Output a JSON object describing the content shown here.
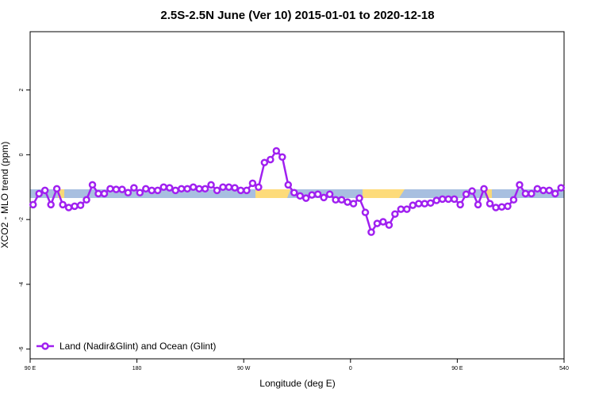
{
  "chart_data": {
    "type": "line",
    "title": "2.5S-2.5N June (Ver 10)   2015-01-01 to 2020-12-18",
    "x_label": "Longitude (deg E)",
    "y_label": "XCO2 - MLO trend (ppm)",
    "xlim": [
      90,
      540
    ],
    "xticks": [
      {
        "value": 90,
        "label": "90 E"
      },
      180,
      {
        "value": 270,
        "label": "90 W"
      },
      {
        "value": 360,
        "label": "0"
      },
      {
        "value": 450,
        "label": "90 E"
      },
      540
    ],
    "ylim": [
      -6.3,
      3.8
    ],
    "yticks": [
      -6,
      -4,
      -2,
      0,
      2
    ],
    "legend": "bottom-left",
    "series": [
      {
        "name": "Land (Nadir&Glint) and Ocean (Glint)",
        "color": "#a020f0",
        "x": [
          92.5,
          97.5,
          102.5,
          107.5,
          112.5,
          117.5,
          122.5,
          127.5,
          132.5,
          137.5,
          142.5,
          147.5,
          152.5,
          157.5,
          162.5,
          167.5,
          172.5,
          177.5,
          182.5,
          187.5,
          192.5,
          197.5,
          202.5,
          207.5,
          212.5,
          217.5,
          222.5,
          227.5,
          232.5,
          237.5,
          242.5,
          247.5,
          252.5,
          257.5,
          262.5,
          267.5,
          272.5,
          277.5,
          282.5,
          287.5,
          292.5,
          297.5,
          302.5,
          307.5,
          312.5,
          317.5,
          322.5,
          327.5,
          332.5,
          337.5,
          342.5,
          347.5,
          352.5,
          357.5,
          362.5,
          367.5,
          372.5,
          377.5,
          382.5,
          387.5,
          392.5,
          397.5,
          402.5,
          407.5,
          412.5,
          417.5,
          422.5,
          427.5,
          432.5,
          437.5,
          442.5,
          447.5,
          452.5,
          457.5,
          462.5,
          467.5,
          472.5,
          477.5,
          482.5,
          487.5,
          492.5,
          497.5,
          502.5,
          507.5,
          512.5,
          517.5,
          522.5,
          527.5,
          532.5,
          537.5
        ],
        "values": [
          -1.54,
          -1.2,
          -1.1,
          -1.54,
          -1.05,
          -1.54,
          -1.63,
          -1.59,
          -1.56,
          -1.39,
          -0.93,
          -1.2,
          -1.2,
          -1.05,
          -1.07,
          -1.07,
          -1.17,
          -1.02,
          -1.17,
          -1.05,
          -1.1,
          -1.1,
          -1.0,
          -1.02,
          -1.1,
          -1.05,
          -1.05,
          -1.0,
          -1.05,
          -1.05,
          -0.93,
          -1.1,
          -1.0,
          -1.0,
          -1.02,
          -1.1,
          -1.1,
          -0.88,
          -1.0,
          -0.24,
          -0.15,
          0.12,
          -0.07,
          -0.93,
          -1.17,
          -1.27,
          -1.34,
          -1.24,
          -1.22,
          -1.32,
          -1.22,
          -1.39,
          -1.39,
          -1.46,
          -1.51,
          -1.34,
          -1.78,
          -2.39,
          -2.12,
          -2.07,
          -2.17,
          -1.83,
          -1.68,
          -1.68,
          -1.56,
          -1.51,
          -1.51,
          -1.49,
          -1.41,
          -1.37,
          -1.37,
          -1.37,
          -1.54,
          -1.22,
          -1.12,
          -1.54,
          -1.05,
          -1.51,
          -1.63,
          -1.61,
          -1.59,
          -1.39,
          -0.93,
          -1.2,
          -1.2,
          -1.05,
          -1.1,
          -1.1,
          -1.2,
          -1.02
        ]
      }
    ]
  }
}
